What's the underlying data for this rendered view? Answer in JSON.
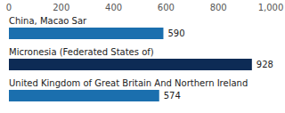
{
  "chart_data": {
    "type": "bar",
    "orientation": "horizontal",
    "categories": [
      "China, Macao Sar",
      "Micronesia (Federated States of)",
      "United Kingdom of Great Britain And Northern Ireland"
    ],
    "values": [
      590,
      928,
      574
    ],
    "colors": [
      "#1b6fae",
      "#0d2b55",
      "#1b6fae"
    ],
    "xlim": [
      0,
      1000
    ],
    "xticks": [
      0,
      200,
      400,
      600,
      800,
      {
        "value": 1000,
        "label": "1,000"
      }
    ],
    "grid": false,
    "data_labels": true
  }
}
